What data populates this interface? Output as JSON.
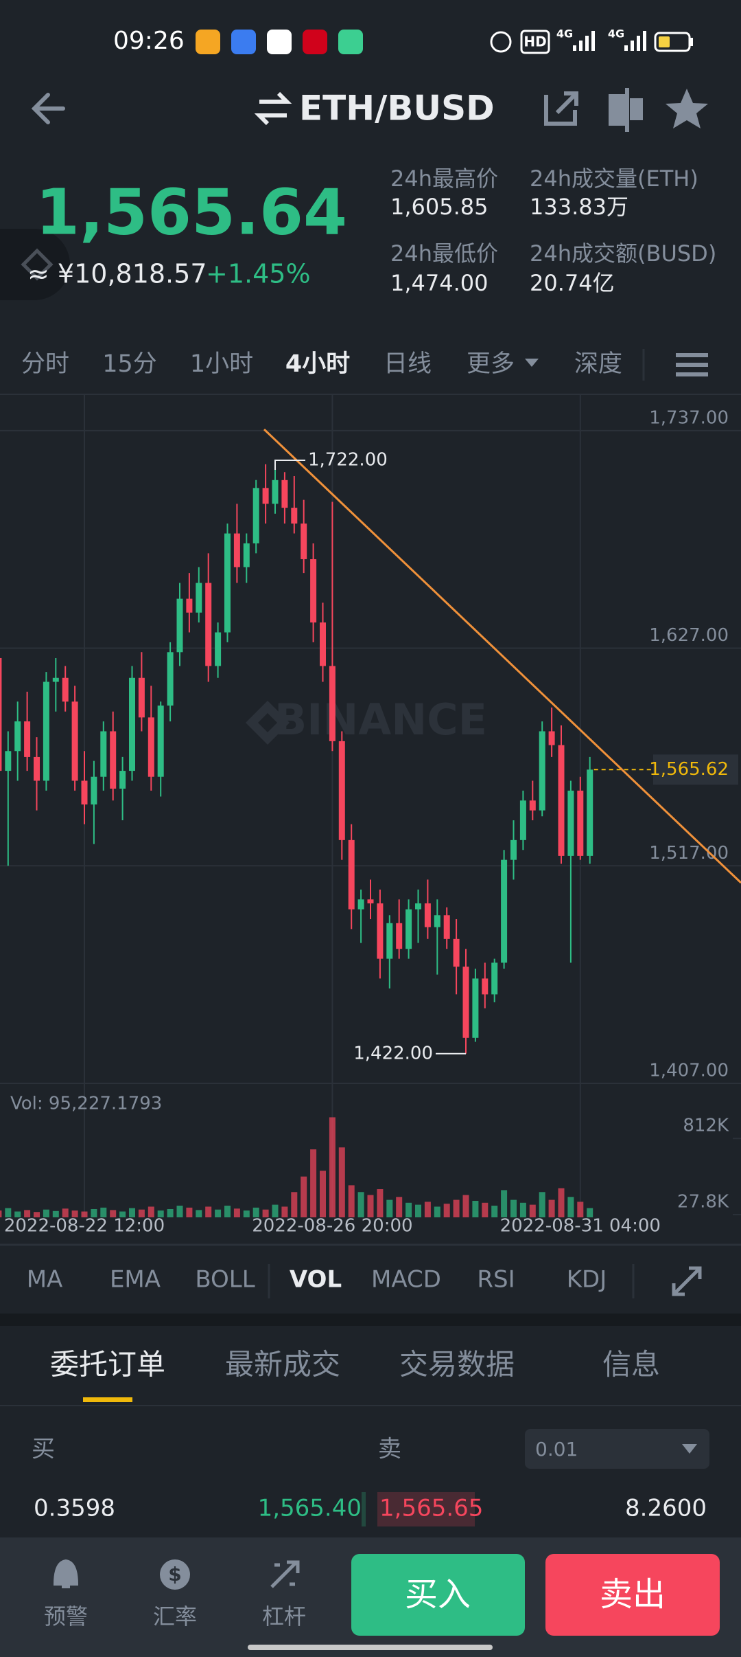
{
  "status": {
    "time": "09:26",
    "badges": [
      "HD",
      "4G",
      "4G"
    ]
  },
  "header": {
    "pair": "ETH/BUSD"
  },
  "ticker": {
    "last_price": "1,565.64",
    "cny_price": "≈ ¥10,818.57",
    "change": "+1.45%",
    "stats": [
      {
        "label": "24h最高价",
        "value": "1,605.85"
      },
      {
        "label": "24h成交量(ETH)",
        "value": "133.83万"
      },
      {
        "label": "24h最低价",
        "value": "1,474.00"
      },
      {
        "label": "24h成交额(BUSD)",
        "value": "20.74亿"
      }
    ]
  },
  "timeframes": {
    "items": [
      "分时",
      "15分",
      "1小时",
      "4小时",
      "日线",
      "更多",
      "深度"
    ],
    "active": 3
  },
  "chart_data": [
    {
      "type": "candlestick",
      "watermark": "BINANCE",
      "open": [
        1622,
        1565,
        1575,
        1590,
        1572,
        1560,
        1610,
        1612,
        1600,
        1560,
        1548,
        1562,
        1585,
        1556,
        1565,
        1612,
        1592,
        1562,
        1598,
        1625,
        1652,
        1645,
        1660,
        1618,
        1635,
        1685,
        1668,
        1680,
        1708,
        1700,
        1712,
        1698,
        1690,
        1672,
        1640,
        1618,
        1580,
        1530,
        1495,
        1500,
        1498,
        1470,
        1488,
        1475,
        1495,
        1498,
        1486,
        1492,
        1480,
        1466,
        1430,
        1460,
        1452,
        1468,
        1520,
        1530,
        1550,
        1545,
        1585,
        1578,
        1522,
        1555,
        1522
      ],
      "high": [
        1628,
        1585,
        1600,
        1605,
        1582,
        1615,
        1622,
        1618,
        1608,
        1575,
        1570,
        1590,
        1595,
        1572,
        1618,
        1625,
        1608,
        1600,
        1630,
        1660,
        1665,
        1668,
        1675,
        1640,
        1690,
        1700,
        1685,
        1712,
        1720,
        1722,
        1716,
        1714,
        1702,
        1680,
        1650,
        1701,
        1585,
        1538,
        1505,
        1510,
        1505,
        1492,
        1500,
        1500,
        1505,
        1510,
        1500,
        1496,
        1490,
        1475,
        1465,
        1468,
        1470,
        1525,
        1540,
        1555,
        1560,
        1590,
        1597,
        1588,
        1560,
        1562,
        1572
      ],
      "low": [
        1555,
        1517,
        1560,
        1565,
        1545,
        1555,
        1595,
        1595,
        1555,
        1538,
        1528,
        1555,
        1550,
        1540,
        1560,
        1585,
        1555,
        1552,
        1590,
        1618,
        1635,
        1640,
        1610,
        1612,
        1630,
        1660,
        1660,
        1675,
        1690,
        1695,
        1690,
        1685,
        1665,
        1630,
        1610,
        1575,
        1520,
        1485,
        1478,
        1490,
        1460,
        1455,
        1470,
        1470,
        1478,
        1480,
        1462,
        1475,
        1452,
        1422,
        1428,
        1445,
        1448,
        1465,
        1510,
        1525,
        1540,
        1542,
        1572,
        1518,
        1468,
        1520,
        1518
      ],
      "close": [
        1565,
        1575,
        1590,
        1572,
        1560,
        1610,
        1612,
        1600,
        1560,
        1548,
        1562,
        1585,
        1556,
        1565,
        1612,
        1592,
        1562,
        1598,
        1625,
        1652,
        1645,
        1660,
        1618,
        1635,
        1685,
        1668,
        1680,
        1708,
        1700,
        1712,
        1698,
        1690,
        1672,
        1640,
        1618,
        1580,
        1530,
        1495,
        1500,
        1498,
        1470,
        1488,
        1475,
        1495,
        1498,
        1486,
        1492,
        1480,
        1466,
        1430,
        1460,
        1452,
        1468,
        1520,
        1530,
        1550,
        1545,
        1585,
        1578,
        1522,
        1555,
        1522,
        1565.62
      ],
      "up_color": "#2ebd85",
      "down_color": "#f6465d",
      "ylim": [
        1407,
        1755
      ],
      "yticks": [
        {
          "value": 1407,
          "label": "1,407.00"
        },
        {
          "value": 1517,
          "label": "1,517.00"
        },
        {
          "value": 1627,
          "label": "1,627.00"
        },
        {
          "value": 1737,
          "label": "1,737.00"
        }
      ],
      "xticks": [
        {
          "value": 9,
          "label": "2022-08-22 12:00"
        },
        {
          "value": 35,
          "label": "2022-08-26 20:00"
        },
        {
          "value": 61,
          "label": "2022-08-31 04:00"
        }
      ],
      "grid": true,
      "annotations": [
        {
          "value": 1722,
          "label": "1,722.00"
        },
        {
          "value": 1422,
          "label": "1,422.00"
        }
      ],
      "last_price": {
        "value": 1565.62,
        "label": "1,565.62",
        "color": "#f0b90b"
      }
    },
    {
      "type": "bar",
      "title": "Vol: 95,227.1793",
      "values": [
        70000,
        95000,
        60000,
        75000,
        55000,
        80000,
        65000,
        90000,
        70000,
        60000,
        85000,
        100000,
        75000,
        60000,
        95000,
        80000,
        110000,
        70000,
        85000,
        120000,
        100000,
        75000,
        110000,
        80000,
        120000,
        90000,
        70000,
        100000,
        80000,
        130000,
        110000,
        260000,
        420000,
        700000,
        480000,
        1030000,
        720000,
        330000,
        260000,
        230000,
        290000,
        180000,
        210000,
        150000,
        130000,
        160000,
        110000,
        140000,
        180000,
        230000,
        170000,
        150000,
        120000,
        280000,
        180000,
        150000,
        130000,
        260000,
        180000,
        300000,
        210000,
        160000,
        95227.1793
      ],
      "ylim": [
        0,
        1330000
      ],
      "yticks": [
        {
          "value": 27800,
          "label": "27.8K"
        },
        {
          "value": 812000,
          "label": "812K"
        }
      ]
    }
  ],
  "indicators": {
    "items": [
      "MA",
      "EMA",
      "BOLL",
      "VOL",
      "MACD",
      "RSI",
      "KDJ"
    ],
    "active": 3
  },
  "tabs": {
    "items": [
      "委托订单",
      "最新成交",
      "交易数据",
      "信息"
    ],
    "active": 0
  },
  "order_book": {
    "buy_label": "买",
    "sell_label": "卖",
    "precision": "0.01",
    "rows": [
      [
        "0.3598",
        "1,565.40",
        "1,565.65",
        "8.2600"
      ]
    ]
  },
  "nav": {
    "items": [
      "预警",
      "汇率",
      "杠杆"
    ],
    "buy": "买入",
    "sell": "卖出"
  }
}
